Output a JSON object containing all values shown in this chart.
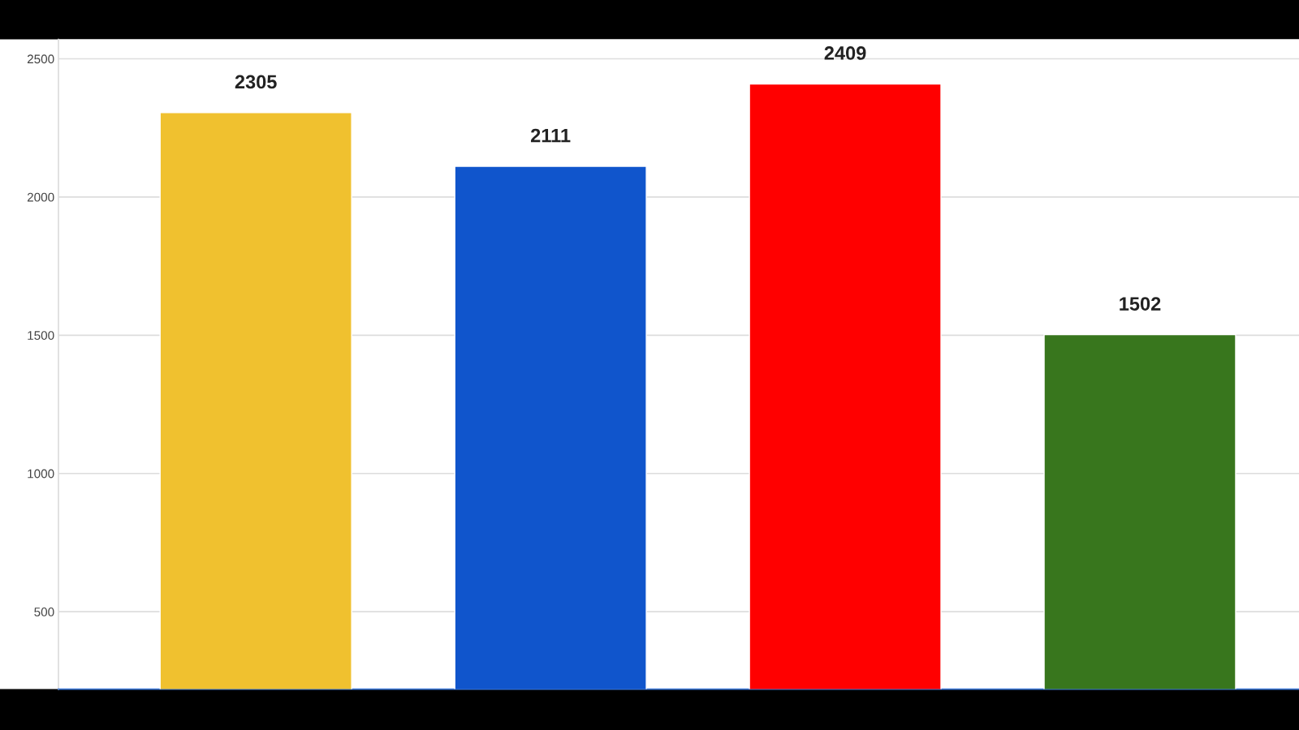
{
  "chart_data": {
    "type": "bar",
    "categories": [
      null,
      null,
      null,
      null
    ],
    "values": [
      2305,
      2111,
      2409,
      1502
    ],
    "colors": [
      "#f0c12f",
      "#1055cc",
      "#ff0000",
      "#38761d"
    ],
    "ylim": [
      220,
      2570
    ],
    "yticks": [
      500,
      1000,
      1500,
      2000,
      2500
    ],
    "grid": "y",
    "data_labels": true
  }
}
